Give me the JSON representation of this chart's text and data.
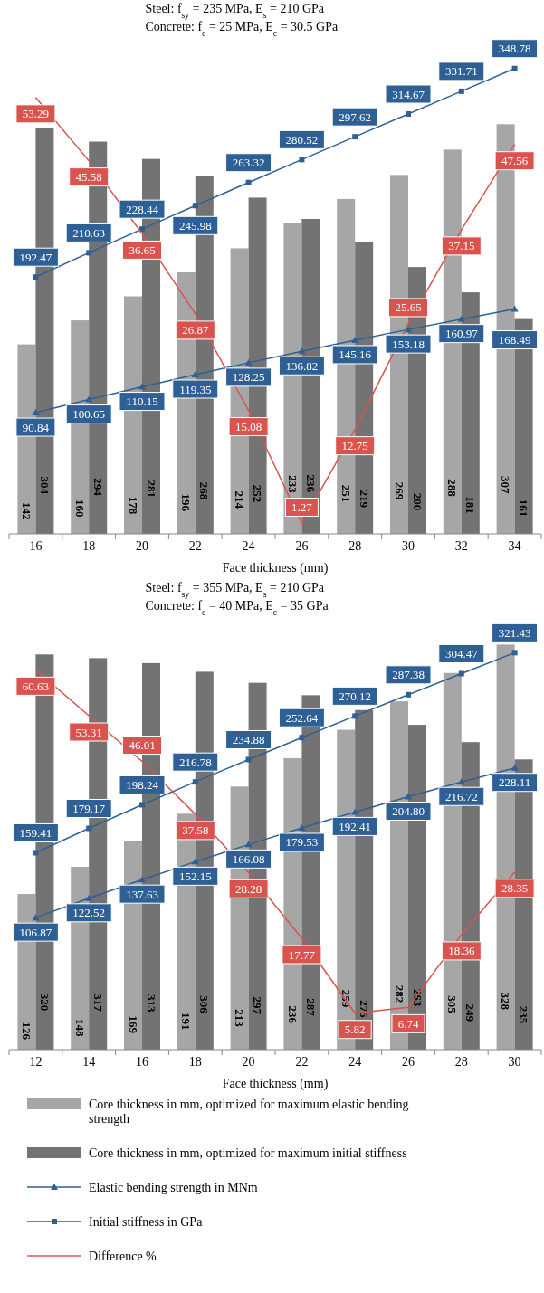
{
  "chart_data": [
    {
      "type": "bar",
      "title": "Steel: f$_{sy}$ = 235 MPa, E$_{s}$ = 210 GPa",
      "subtitle": "Concrete: f$_{c}$ = 25 MPa, E$_{c}$ = 30.5 GPa",
      "xlabel": "Face thickness (mm)",
      "categories": [
        "16",
        "18",
        "20",
        "22",
        "24",
        "26",
        "28",
        "30",
        "32",
        "34"
      ],
      "data_labels": true,
      "legend": false,
      "series": [
        {
          "color": "#a6a6a6",
          "values": [
            142,
            160,
            178,
            196,
            214,
            233,
            251,
            269,
            288,
            307
          ]
        },
        {
          "color": "#737373",
          "values": [
            304,
            294,
            281,
            268,
            252,
            236,
            219,
            200,
            181,
            161
          ]
        },
        {
          "type": "line",
          "color": "#2e6095",
          "marker": "triangle",
          "values": [
            90.84,
            100.65,
            110.15,
            119.35,
            128.25,
            136.82,
            145.16,
            153.18,
            160.97,
            168.49
          ]
        },
        {
          "type": "line",
          "color": "#2e6095",
          "marker": "square",
          "values": [
            192.47,
            210.63,
            228.44,
            245.98,
            263.32,
            280.52,
            297.62,
            314.67,
            331.71,
            348.78
          ]
        },
        {
          "type": "line",
          "axis": "y2",
          "color": "#d9534f",
          "marker": "none",
          "values": [
            53.29,
            45.58,
            36.65,
            26.87,
            15.08,
            1.27,
            12.75,
            25.65,
            37.15,
            47.56
          ]
        }
      ]
    },
    {
      "type": "bar",
      "title": "Steel: f$_{sy}$ = 355 MPa, E$_{s}$ = 210 GPa",
      "subtitle": "Concrete: f$_{c}$ = 40 MPa, E$_{c}$ = 35 GPa",
      "xlabel": "Face thickness (mm)",
      "categories": [
        "12",
        "14",
        "16",
        "18",
        "20",
        "22",
        "24",
        "26",
        "28",
        "30"
      ],
      "data_labels": true,
      "legend": "bottom",
      "series": [
        {
          "name": "Core thickness in mm, optimized for maximum elastic bending strength",
          "color": "#a6a6a6",
          "values": [
            126,
            148,
            169,
            191,
            213,
            236,
            259,
            282,
            305,
            328
          ]
        },
        {
          "name": "Core thickness in mm, optimized for maximum initial stiffness",
          "color": "#737373",
          "values": [
            320,
            317,
            313,
            306,
            297,
            287,
            275,
            263,
            249,
            235
          ]
        },
        {
          "type": "line",
          "name": "Elastic bending strength in MNm",
          "color": "#2e6095",
          "marker": "triangle",
          "values": [
            106.87,
            122.52,
            137.63,
            152.15,
            166.08,
            179.53,
            192.41,
            204.8,
            216.72,
            228.11
          ],
          "value_labels": [
            "106.87",
            "122.52",
            "137.63",
            "152.15",
            "166.08",
            "179.53",
            "192.41",
            "204.80",
            "216.72",
            "228.11"
          ]
        },
        {
          "type": "line",
          "name": "Initial stiffness in GPa",
          "color": "#2e6095",
          "marker": "square",
          "values": [
            159.41,
            179.17,
            198.24,
            216.78,
            234.88,
            252.64,
            270.12,
            287.38,
            304.47,
            321.43
          ]
        },
        {
          "type": "line",
          "axis": "y2",
          "name": "Difference %",
          "color": "#d9534f",
          "marker": "none",
          "values": [
            60.63,
            53.31,
            46.01,
            37.58,
            28.28,
            17.77,
            5.82,
            6.74,
            18.36,
            28.35
          ]
        }
      ]
    }
  ]
}
